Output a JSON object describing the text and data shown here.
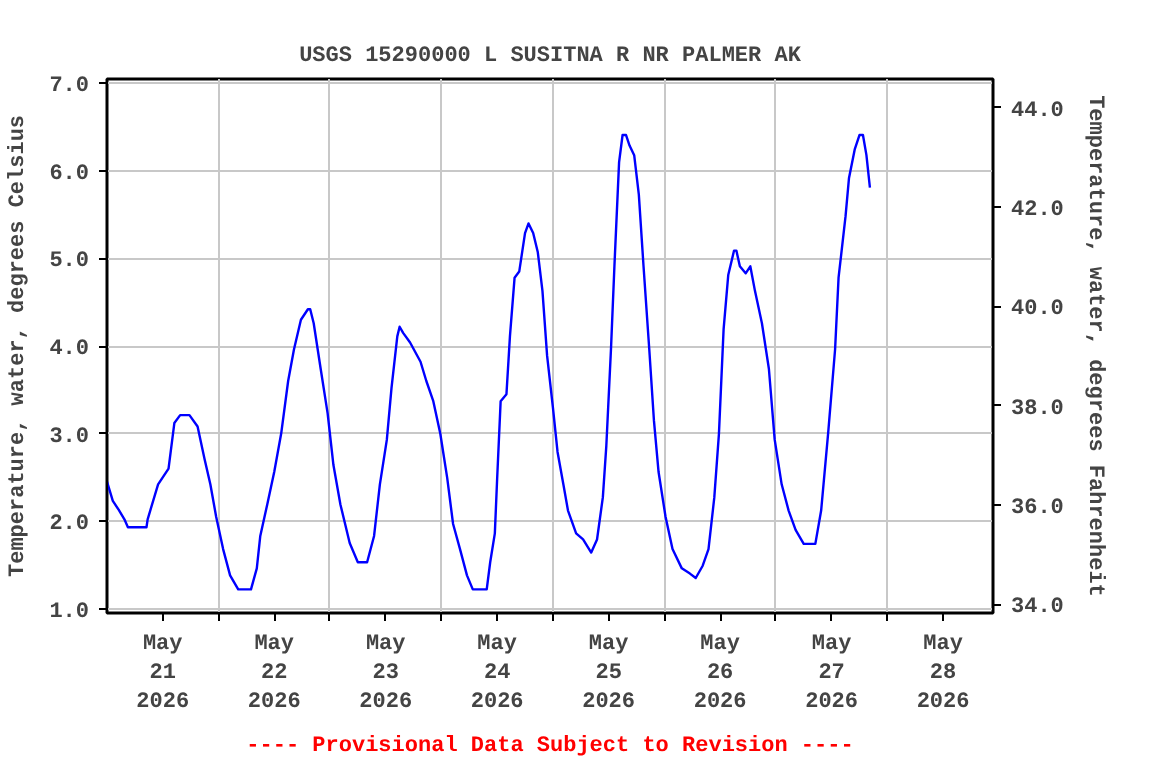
{
  "chart_data": {
    "type": "line",
    "title": "USGS 15290000 L SUSITNA R NR PALMER AK",
    "ylabel": "Temperature, water, degrees Celsius",
    "y2label": "Temperature, water, degrees Fahrenheit",
    "annotations": [
      "---- Provisional Data Subject to Revision ----"
    ],
    "x": [
      "2026-05-21T00:00",
      "2026-05-21T01:15",
      "2026-05-21T02:30",
      "2026-05-21T03:45",
      "2026-05-21T04:30",
      "2026-05-21T08:30",
      "2026-05-21T08:45",
      "2026-05-21T11:00",
      "2026-05-21T13:15",
      "2026-05-21T14:30",
      "2026-05-21T15:45",
      "2026-05-21T17:45",
      "2026-05-21T19:30",
      "2026-05-21T21:00",
      "2026-05-21T22:15",
      "2026-05-21T23:30",
      "2026-05-22T01:00",
      "2026-05-22T02:30",
      "2026-05-22T04:15",
      "2026-05-22T07:00",
      "2026-05-22T08:15",
      "2026-05-22T09:00",
      "2026-05-22T10:30",
      "2026-05-22T12:00",
      "2026-05-22T13:30",
      "2026-05-22T15:00",
      "2026-05-22T16:15",
      "2026-05-22T17:45",
      "2026-05-22T19:15",
      "2026-05-22T19:45",
      "2026-05-22T20:30",
      "2026-05-22T22:00",
      "2026-05-22T23:30",
      "2026-05-23T00:45",
      "2026-05-23T02:15",
      "2026-05-23T04:15",
      "2026-05-23T06:00",
      "2026-05-23T08:00",
      "2026-05-23T09:30",
      "2026-05-23T10:45",
      "2026-05-23T12:15",
      "2026-05-23T13:15",
      "2026-05-23T14:30",
      "2026-05-23T15:00",
      "2026-05-23T15:45",
      "2026-05-23T17:15",
      "2026-05-23T19:30",
      "2026-05-23T20:45",
      "2026-05-23T22:15",
      "2026-05-23T23:45",
      "2026-05-24T01:15",
      "2026-05-24T02:30",
      "2026-05-24T04:00",
      "2026-05-24T05:30",
      "2026-05-24T06:45",
      "2026-05-24T09:45",
      "2026-05-24T10:30",
      "2026-05-24T11:30",
      "2026-05-24T12:00",
      "2026-05-24T12:45",
      "2026-05-24T14:00",
      "2026-05-24T14:45",
      "2026-05-24T15:45",
      "2026-05-24T16:45",
      "2026-05-24T18:00",
      "2026-05-24T18:45",
      "2026-05-24T19:45",
      "2026-05-24T20:45",
      "2026-05-24T21:45",
      "2026-05-24T22:45",
      "2026-05-25T00:00",
      "2026-05-25T01:00",
      "2026-05-25T02:15",
      "2026-05-25T03:15",
      "2026-05-25T05:00",
      "2026-05-25T06:30",
      "2026-05-25T08:15",
      "2026-05-25T09:30",
      "2026-05-25T10:45",
      "2026-05-25T11:30",
      "2026-05-25T12:30",
      "2026-05-25T13:15",
      "2026-05-25T14:15",
      "2026-05-25T15:00",
      "2026-05-25T15:45",
      "2026-05-25T16:30",
      "2026-05-25T17:30",
      "2026-05-25T18:30",
      "2026-05-25T19:30",
      "2026-05-25T20:45",
      "2026-05-25T21:45",
      "2026-05-25T22:45",
      "2026-05-26T00:15",
      "2026-05-26T01:45",
      "2026-05-26T03:45",
      "2026-05-26T05:30",
      "2026-05-26T06:45",
      "2026-05-26T08:15",
      "2026-05-26T09:30",
      "2026-05-26T10:45",
      "2026-05-26T11:45",
      "2026-05-26T12:45",
      "2026-05-26T13:45",
      "2026-05-26T15:00",
      "2026-05-26T15:30",
      "2026-05-26T16:15",
      "2026-05-26T17:30",
      "2026-05-26T18:30",
      "2026-05-26T19:30",
      "2026-05-26T21:00",
      "2026-05-26T22:30",
      "2026-05-26T23:45",
      "2026-05-27T01:15",
      "2026-05-27T02:45",
      "2026-05-27T04:15",
      "2026-05-27T06:00",
      "2026-05-27T08:30",
      "2026-05-27T09:45",
      "2026-05-27T11:15",
      "2026-05-27T12:45",
      "2026-05-27T13:30",
      "2026-05-27T15:00",
      "2026-05-27T15:45",
      "2026-05-27T17:00",
      "2026-05-27T18:00",
      "2026-05-27T18:45",
      "2026-05-27T19:30",
      "2026-05-27T20:15"
    ],
    "series": [
      {
        "color": "#0000ff",
        "values": [
          2.45,
          2.23,
          2.13,
          2.02,
          1.93,
          1.93,
          2.02,
          2.42,
          2.6,
          3.12,
          3.21,
          3.21,
          3.08,
          2.71,
          2.42,
          2.05,
          1.68,
          1.38,
          1.22,
          1.22,
          1.46,
          1.83,
          2.19,
          2.56,
          3.0,
          3.6,
          3.96,
          4.3,
          4.42,
          4.42,
          4.26,
          3.74,
          3.23,
          2.64,
          2.19,
          1.75,
          1.53,
          1.53,
          1.83,
          2.42,
          2.93,
          3.52,
          4.11,
          4.22,
          4.15,
          4.04,
          3.82,
          3.6,
          3.37,
          3.0,
          2.49,
          1.97,
          1.68,
          1.38,
          1.22,
          1.22,
          1.53,
          1.86,
          2.49,
          3.37,
          3.45,
          4.11,
          4.78,
          4.85,
          5.29,
          5.4,
          5.29,
          5.07,
          4.63,
          3.89,
          3.3,
          2.79,
          2.42,
          2.12,
          1.86,
          1.79,
          1.64,
          1.79,
          2.27,
          2.86,
          3.96,
          4.92,
          6.1,
          6.41,
          6.41,
          6.29,
          6.18,
          5.73,
          4.92,
          3.96,
          3.15,
          2.56,
          2.05,
          1.68,
          1.46,
          1.4,
          1.35,
          1.49,
          1.68,
          2.27,
          3.0,
          4.19,
          4.81,
          5.09,
          5.09,
          4.91,
          4.83,
          4.91,
          4.63,
          4.26,
          3.74,
          2.93,
          2.42,
          2.12,
          1.9,
          1.74,
          1.74,
          2.12,
          3.0,
          3.96,
          4.78,
          5.48,
          5.92,
          6.25,
          6.41,
          6.41,
          6.18,
          5.81
        ]
      }
    ],
    "xlim": [
      "2026-05-21T00:00",
      "2026-05-28T22:45"
    ],
    "xticks": [
      {
        "value": "2026-05-21T12:00",
        "label": "May\n21\n2026"
      },
      {
        "value": "2026-05-22T12:00",
        "label": "May\n22\n2026"
      },
      {
        "value": "2026-05-23T12:00",
        "label": "May\n23\n2026"
      },
      {
        "value": "2026-05-24T12:00",
        "label": "May\n24\n2026"
      },
      {
        "value": "2026-05-25T12:00",
        "label": "May\n25\n2026"
      },
      {
        "value": "2026-05-26T12:00",
        "label": "May\n26\n2026"
      },
      {
        "value": "2026-05-27T12:00",
        "label": "May\n27\n2026"
      },
      {
        "value": "2026-05-28T12:00",
        "label": "May\n28\n2026"
      },
      {
        "value": "2026-05-22T00:00",
        "label": null
      },
      {
        "value": "2026-05-23T00:00",
        "label": null
      },
      {
        "value": "2026-05-24T00:00",
        "label": null
      },
      {
        "value": "2026-05-25T00:00",
        "label": null
      },
      {
        "value": "2026-05-26T00:00",
        "label": null
      },
      {
        "value": "2026-05-27T00:00",
        "label": null
      },
      {
        "value": "2026-05-28T00:00",
        "label": null
      }
    ],
    "ylim": [
      0.95,
      7.05
    ],
    "yticks": [
      {
        "value": 1,
        "label": "1.0"
      },
      {
        "value": 2,
        "label": "2.0"
      },
      {
        "value": 3,
        "label": "3.0"
      },
      {
        "value": 4,
        "label": "4.0"
      },
      {
        "value": 5,
        "label": "5.0"
      },
      {
        "value": 6,
        "label": "6.0"
      },
      {
        "value": 7,
        "label": "7.0"
      }
    ],
    "y2lim": [
      33.82,
      44.58
    ],
    "y2ticks": [
      {
        "value": 34,
        "label": "34.0"
      },
      {
        "value": 36,
        "label": "36.0"
      },
      {
        "value": 38,
        "label": "38.0"
      },
      {
        "value": 40,
        "label": "40.0"
      },
      {
        "value": 42,
        "label": "42.0"
      },
      {
        "value": 44,
        "label": "44.0"
      }
    ],
    "grid": true,
    "marker": "none",
    "line_style": "solid"
  }
}
